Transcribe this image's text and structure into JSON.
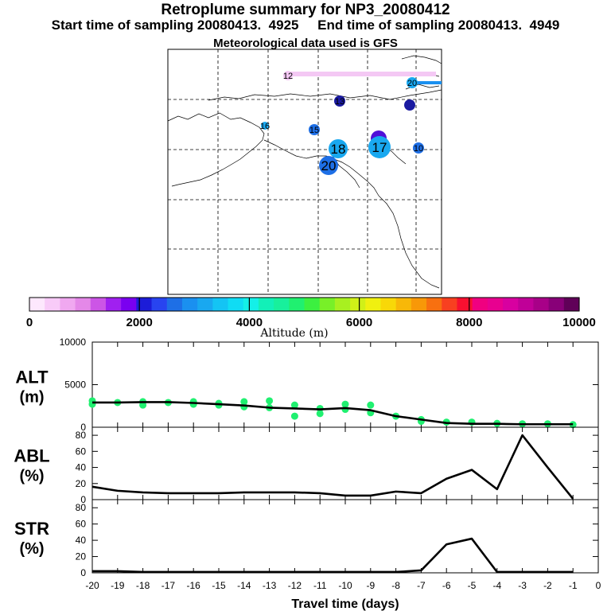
{
  "header": {
    "title": "Retroplume summary for NP3_20080412",
    "sampling": "Start time of sampling 20080413.  4925     End time of sampling 20080413.  4949",
    "met": "Meteorological data used is GFS"
  },
  "map": {
    "day_labels": [
      "12",
      "20",
      "13",
      "16",
      "15",
      "18",
      "17",
      "10",
      "20"
    ],
    "marker_colors": {
      "low": "#1e6fe6",
      "mid": "#19a8f0",
      "high": "#5010d8",
      "navy": "#1a1aa0",
      "pink": "#f4c8f4"
    }
  },
  "colorbar": {
    "label": "Altitude (m)",
    "ticks": [
      "0",
      "2000",
      "4000",
      "6000",
      "8000",
      "10000"
    ],
    "colors": [
      "#fde8fd",
      "#f8cbf8",
      "#f0a8f0",
      "#e488e8",
      "#cc55e6",
      "#a020f0",
      "#7a00f0",
      "#1c1cd8",
      "#2844f0",
      "#1e6fe6",
      "#1a90f0",
      "#19a8f0",
      "#14c4f4",
      "#10dcf4",
      "#14f0e8",
      "#12f0b8",
      "#18f09c",
      "#20f070",
      "#3cf040",
      "#78f028",
      "#a8f020",
      "#d0f018",
      "#f0f010",
      "#f8d808",
      "#f8b808",
      "#f89808",
      "#f87010",
      "#f84020",
      "#f81030",
      "#f00080",
      "#e80090",
      "#d800a0",
      "#c00098",
      "#a80088",
      "#880078",
      "#600058"
    ]
  },
  "chart_data": [
    {
      "type": "line",
      "panel": "ALT",
      "ylabel_line1": "ALT",
      "ylabel_line2": "(m)",
      "ylim": [
        0,
        10000
      ],
      "yticks": [
        "0",
        "5000",
        "10000"
      ],
      "x": [
        -20,
        -19,
        -18,
        -17,
        -16,
        -15,
        -14,
        -13,
        -12,
        -11,
        -10,
        -9,
        -8,
        -7,
        -6,
        -5,
        -4,
        -3,
        -2,
        -1
      ],
      "values": [
        2900,
        2900,
        2950,
        2950,
        2850,
        2700,
        2550,
        2300,
        2200,
        2100,
        2250,
        2000,
        1300,
        900,
        500,
        400,
        400,
        350,
        350,
        350
      ],
      "points": {
        "x": [
          -20,
          -20,
          -19,
          -18,
          -18,
          -17,
          -16,
          -16,
          -15,
          -15,
          -14,
          -14,
          -13,
          -13,
          -12,
          -12,
          -11,
          -11,
          -10,
          -10,
          -9,
          -9,
          -8,
          -7,
          -7,
          -6,
          -5,
          -4,
          -3,
          -2,
          -1
        ],
        "y": [
          2700,
          3100,
          2900,
          3000,
          2600,
          2900,
          3000,
          2700,
          2800,
          2600,
          2400,
          3000,
          3100,
          2300,
          2600,
          1300,
          2200,
          1600,
          2700,
          2100,
          2600,
          1700,
          1300,
          900,
          700,
          600,
          600,
          450,
          400,
          400,
          300
        ]
      },
      "point_color": "#20f070"
    },
    {
      "type": "line",
      "panel": "ABL",
      "ylabel_line1": "ABL",
      "ylabel_line2": "(%)",
      "ylim": [
        0,
        90
      ],
      "yticks": [
        "0",
        "20",
        "40",
        "60",
        "80"
      ],
      "x": [
        -20,
        -19,
        -18,
        -17,
        -16,
        -15,
        -14,
        -13,
        -12,
        -11,
        -10,
        -9,
        -8,
        -7,
        -6,
        -5,
        -4,
        -3,
        -2,
        -1
      ],
      "values": [
        16,
        11,
        9,
        8,
        8,
        8,
        9,
        9,
        9,
        8,
        5,
        5,
        10,
        8,
        26,
        37,
        13,
        80,
        40,
        1
      ]
    },
    {
      "type": "line",
      "panel": "STR",
      "ylabel_line1": "STR",
      "ylabel_line2": "(%)",
      "ylim": [
        0,
        90
      ],
      "yticks": [
        "0",
        "20",
        "40",
        "60",
        "80"
      ],
      "x": [
        -20,
        -19,
        -18,
        -17,
        -16,
        -15,
        -14,
        -13,
        -12,
        -11,
        -10,
        -9,
        -8,
        -7,
        -6,
        -5,
        -4,
        -3,
        -2,
        -1
      ],
      "values": [
        2,
        2,
        1,
        1,
        1,
        1,
        1,
        1,
        1,
        1,
        1,
        1,
        1,
        3,
        35,
        42,
        1,
        1,
        1,
        1
      ],
      "xlabel": "Travel time (days)",
      "xlim": [
        -20,
        0
      ],
      "xticks": [
        "-20",
        "-19",
        "-18",
        "-17",
        "-16",
        "-15",
        "-14",
        "-13",
        "-12",
        "-11",
        "-10",
        "-9",
        "-8",
        "-7",
        "-6",
        "-5",
        "-4",
        "-3",
        "-2",
        "-1",
        "0"
      ]
    }
  ]
}
